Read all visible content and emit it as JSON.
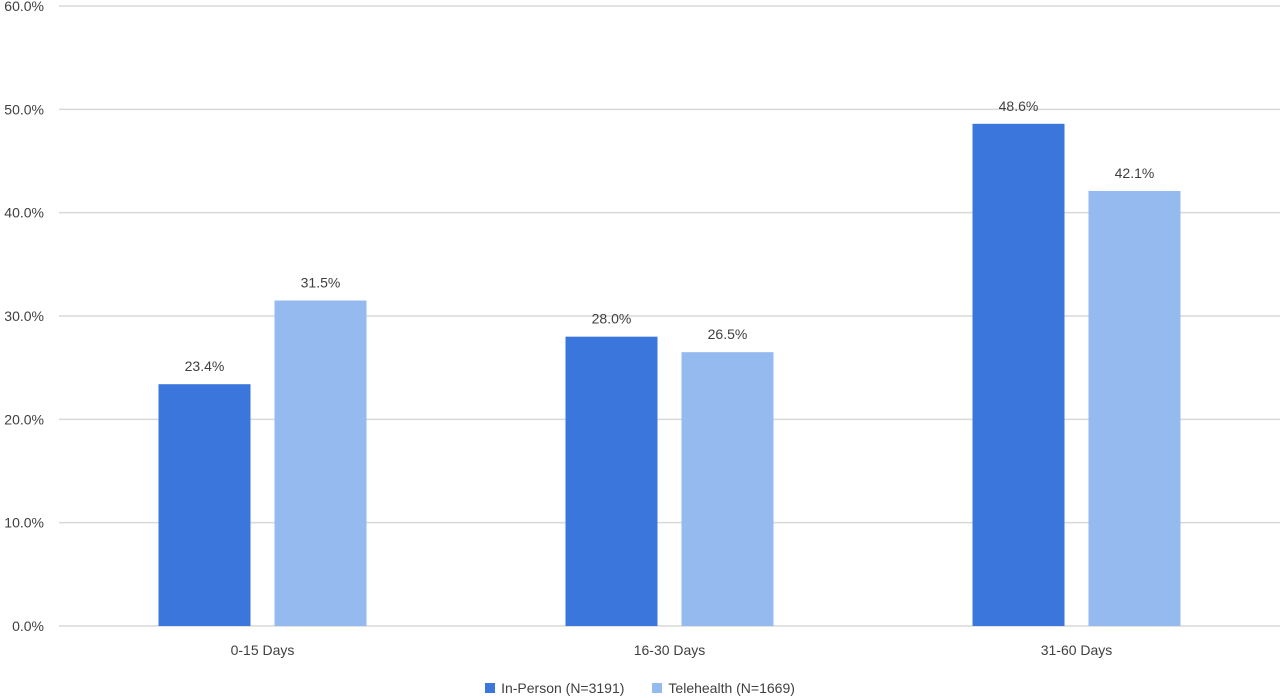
{
  "chart_data": {
    "type": "bar",
    "categories": [
      "0-15 Days",
      "16-30 Days",
      "31-60 Days"
    ],
    "series": [
      {
        "name": "In-Person (N=3191)",
        "values": [
          23.4,
          28.0,
          48.6
        ],
        "labels": [
          "23.4%",
          "28.0%",
          "48.6%"
        ],
        "color": "#3A76DB"
      },
      {
        "name": "Telehealth (N=1669)",
        "values": [
          31.5,
          26.5,
          42.1
        ],
        "labels": [
          "31.5%",
          "26.5%",
          "42.1%"
        ],
        "color": "#94BAF0"
      }
    ],
    "ylim": [
      0,
      60
    ],
    "yticks": [
      "0.0%",
      "10.0%",
      "20.0%",
      "30.0%",
      "40.0%",
      "50.0%",
      "60.0%"
    ],
    "grid": true,
    "legend_position": "bottom",
    "title": "",
    "xlabel": "",
    "ylabel": ""
  }
}
